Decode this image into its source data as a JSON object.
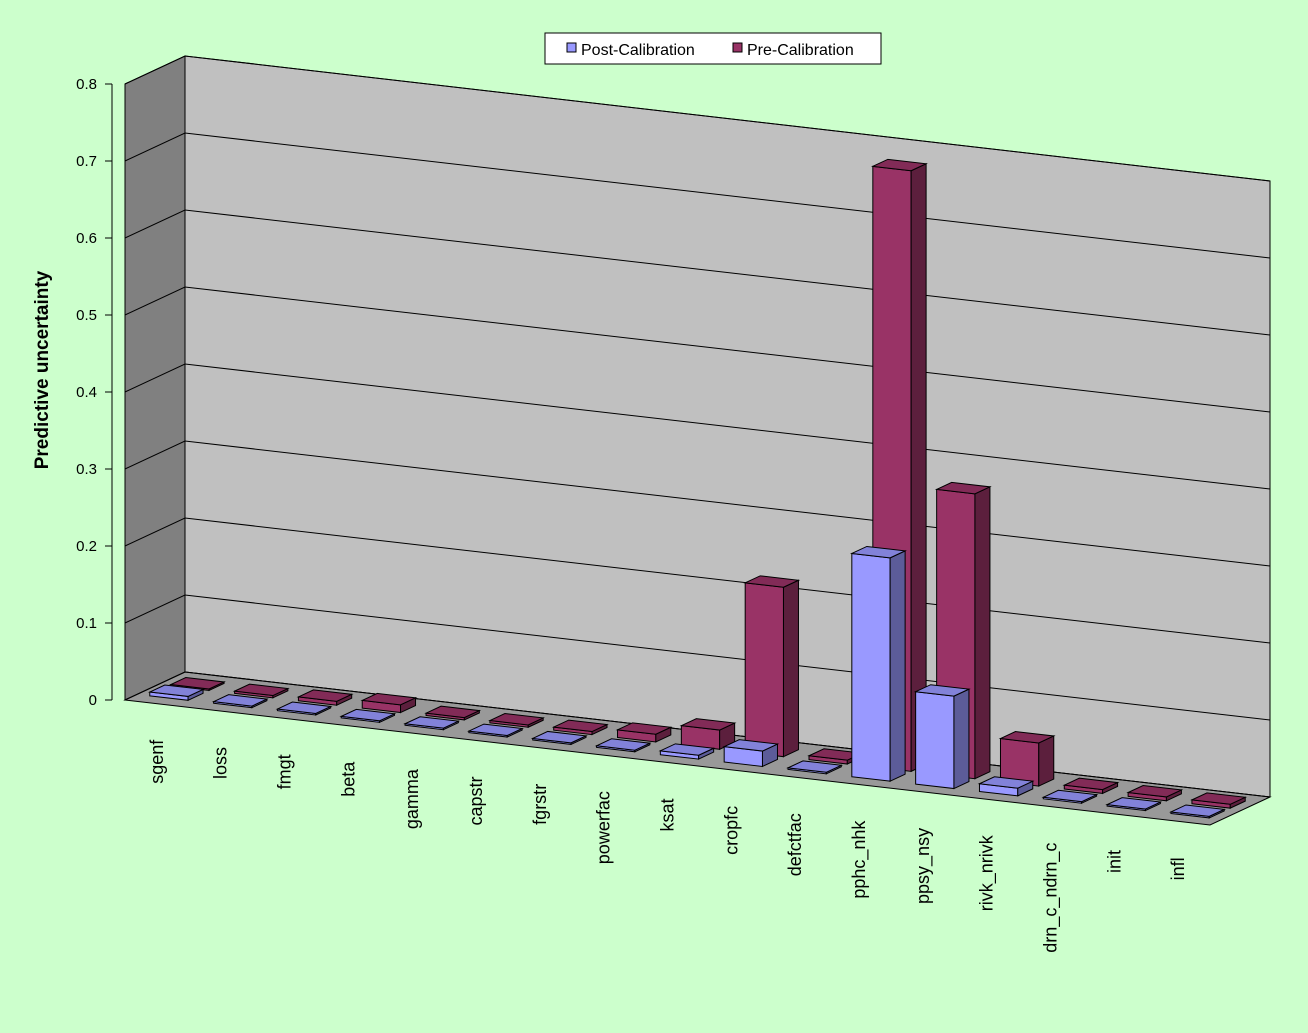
{
  "chart_data": {
    "type": "bar",
    "y_label": "Predictive uncertainty",
    "categories": [
      "sgenf",
      "loss",
      "fmgt",
      "beta",
      "gamma",
      "capstr",
      "fgrstr",
      "powerfac",
      "ksat",
      "cropfc",
      "defctfac",
      "pphc_nhk",
      "ppsy_nsy",
      "rivk_nrivk",
      "drn_c_ndrn_c",
      "init",
      "infl"
    ],
    "series": [
      {
        "name": "Post-Calibration",
        "color": "#9999ff",
        "values": [
          0.005,
          0.002,
          0.002,
          0.002,
          0.002,
          0.002,
          0.002,
          0.002,
          0.005,
          0.02,
          0.002,
          0.29,
          0.12,
          0.01,
          0.002,
          0.002,
          0.002
        ]
      },
      {
        "name": "Pre-Calibration",
        "color": "#993366",
        "values": [
          0.002,
          0.003,
          0.005,
          0.01,
          0.003,
          0.003,
          0.004,
          0.01,
          0.025,
          0.22,
          0.005,
          0.78,
          0.37,
          0.056,
          0.005,
          0.005,
          0.005
        ]
      }
    ],
    "ylim": [
      0,
      0.8
    ],
    "yticks": [
      0,
      0.1,
      0.2,
      0.3,
      0.4,
      0.5,
      0.6,
      0.7,
      0.8
    ],
    "grid": true,
    "legend": "top"
  }
}
